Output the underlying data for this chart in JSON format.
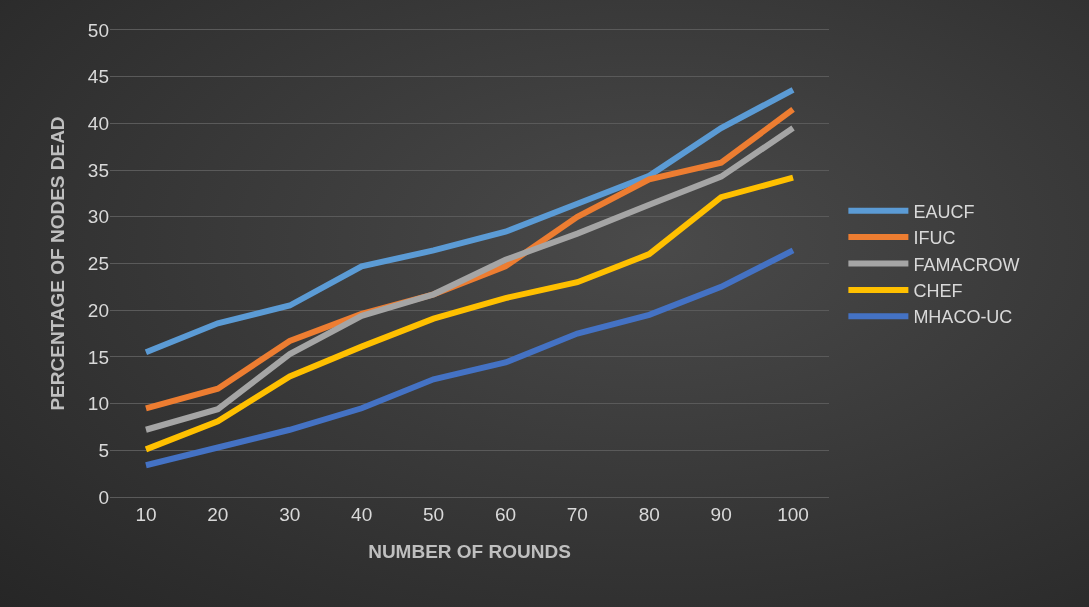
{
  "chart_data": {
    "type": "line",
    "xlabel": "NUMBER OF ROUNDS",
    "ylabel": "PERCENTAGE OF NODES DEAD",
    "categories": [
      "10",
      "20",
      "30",
      "40",
      "50",
      "60",
      "70",
      "80",
      "90",
      "100"
    ],
    "series": [
      {
        "name": "EAUCF",
        "color": "#5b9bd5",
        "values": [
          15.5,
          18.6,
          20.5,
          24.7,
          26.4,
          28.4,
          31.4,
          34.4,
          39.5,
          43.6
        ]
      },
      {
        "name": "IFUC",
        "color": "#ed7d31",
        "values": [
          9.5,
          11.6,
          16.7,
          19.6,
          21.7,
          24.7,
          30,
          34,
          35.8,
          41.5
        ]
      },
      {
        "name": "FAMACROW",
        "color": "#a5a5a5",
        "values": [
          7.2,
          9.4,
          15.3,
          19.4,
          21.7,
          25.4,
          28.2,
          31.3,
          34.3,
          39.5
        ]
      },
      {
        "name": "CHEF",
        "color": "#ffc000",
        "values": [
          5.1,
          8.1,
          12.9,
          16.1,
          19.1,
          21.3,
          23,
          26,
          32.1,
          34.2
        ]
      },
      {
        "name": "MHACO-UC",
        "color": "#4472c4",
        "values": [
          3.4,
          5.3,
          7.2,
          9.5,
          12.6,
          14.4,
          17.5,
          19.5,
          22.5,
          26.4
        ]
      }
    ],
    "ylim": [
      0,
      50
    ],
    "yticks": [
      0,
      5,
      10,
      15,
      20,
      25,
      30,
      35,
      40,
      45,
      50
    ],
    "grid": "y",
    "legend": "right",
    "marker": "none",
    "line_style": "solid"
  }
}
